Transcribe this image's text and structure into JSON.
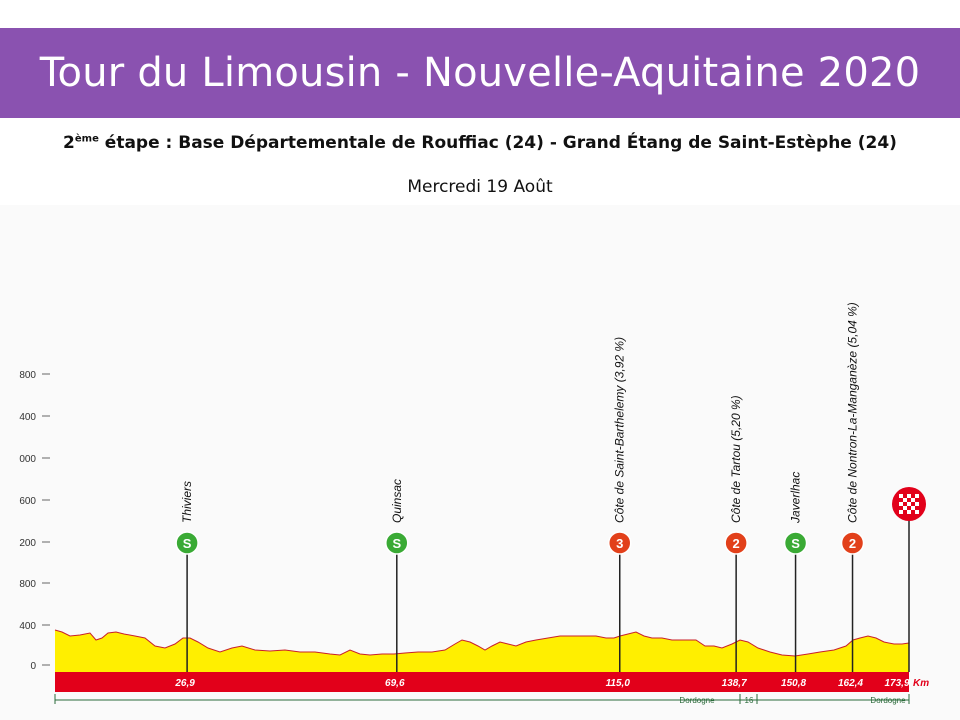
{
  "header": {
    "title": "Tour du Limousin - Nouvelle-Aquitaine 2020",
    "stage_number": "2",
    "stage_suffix": "ème",
    "stage_text": " étape : Base Départementale de Rouffiac (24) - Grand Étang de Saint-Estèphe (24)",
    "date": "Mercredi 19 Août"
  },
  "colors": {
    "banner": "#8a52b0",
    "terrain": "#ffef00",
    "km_bar": "#e2001a",
    "sprint_badge": "#3aaa35",
    "climb_badge": "#e2401a"
  },
  "y_axis": [
    "800",
    "400",
    "000",
    "600",
    "200",
    "800",
    "400",
    "0"
  ],
  "profile": {
    "total_km": 173.9,
    "unit": "Km",
    "km_markers": [
      "26,9",
      "69,6",
      "115,0",
      "138,7",
      "150,8",
      "162,4",
      "173,9"
    ]
  },
  "points": [
    {
      "km": 26.9,
      "name": "Thiviers",
      "badge": "S",
      "type": "sprint"
    },
    {
      "km": 69.6,
      "name": "Quinsac",
      "badge": "S",
      "type": "sprint"
    },
    {
      "km": 115.0,
      "name": "Côte de Saint-Barthelemy",
      "grade": "(3,92 %)",
      "badge": "3",
      "type": "climb"
    },
    {
      "km": 138.7,
      "name": "Côte de Tartou",
      "grade": "(5,20 %)",
      "badge": "2",
      "type": "climb"
    },
    {
      "km": 150.8,
      "name": "Javerlhac",
      "badge": "S",
      "type": "sprint"
    },
    {
      "km": 162.4,
      "name": "Côte de Nontron-La-Manganèze",
      "grade": "(5,04 %)",
      "badge": "2",
      "type": "climb"
    },
    {
      "km": 173.9,
      "name": "",
      "badge": "",
      "type": "finish"
    }
  ],
  "departments": {
    "left": "Dordogne",
    "number": "16",
    "right": "Dordogne"
  }
}
